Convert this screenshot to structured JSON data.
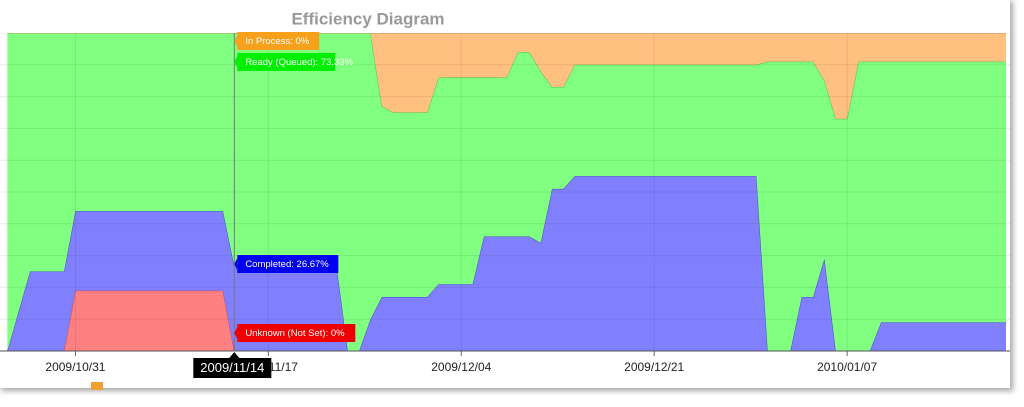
{
  "chart_data": {
    "type": "area",
    "title": "Efficiency Diagram",
    "x": [
      "2009/10/25",
      "2009/10/27",
      "2009/10/30",
      "2009/10/31",
      "2009/11/13",
      "2009/11/14",
      "2009/11/23",
      "2009/11/24",
      "2009/11/25",
      "2009/11/26",
      "2009/11/27",
      "2009/11/28",
      "2009/12/01",
      "2009/12/02",
      "2009/12/05",
      "2009/12/06",
      "2009/12/08",
      "2009/12/09",
      "2009/12/10",
      "2009/12/11",
      "2009/12/12",
      "2009/12/13",
      "2009/12/14",
      "2009/12/30",
      "2009/12/31",
      "2010/01/02",
      "2010/01/03",
      "2010/01/04",
      "2010/01/05",
      "2010/01/06",
      "2010/01/07",
      "2010/01/08",
      "2010/01/09",
      "2010/01/10",
      "2010/01/21"
    ],
    "series": [
      {
        "name": "Unknown (Not Set)",
        "color": "#ff8080",
        "edge": "#d04848",
        "values": [
          0,
          0,
          0,
          19,
          19,
          0,
          0,
          0,
          0,
          0,
          0,
          0,
          0,
          0,
          0,
          0,
          0,
          0,
          0,
          0,
          0,
          0,
          0,
          0,
          0,
          0,
          0,
          0,
          0,
          0,
          0,
          0,
          0,
          0,
          0
        ]
      },
      {
        "name": "Completed",
        "color": "#8080ff",
        "edge": "#4848c8",
        "values": [
          0,
          25,
          25,
          25,
          25,
          26.67,
          27,
          0,
          0,
          10,
          17,
          17,
          17,
          21,
          21,
          36,
          36,
          36,
          36,
          34,
          51,
          51,
          55,
          55,
          0,
          0,
          17,
          17,
          29,
          0,
          0,
          0,
          0,
          9,
          9
        ]
      },
      {
        "name": "Ready (Queued)",
        "color": "#80ff80",
        "edge": "#48c848",
        "values": [
          100,
          75,
          75,
          56,
          56,
          73.33,
          73,
          100,
          100,
          90,
          60,
          58,
          58,
          65,
          65,
          50,
          50,
          58,
          58,
          54,
          32,
          32,
          35,
          35,
          91,
          91,
          74,
          74,
          56,
          73,
          73,
          91,
          91,
          82,
          82
        ]
      },
      {
        "name": "In Process",
        "color": "#ffc080",
        "edge": "#e0a060",
        "values": [
          0,
          0,
          0,
          0,
          0,
          0,
          0,
          0,
          0,
          0,
          23,
          25,
          25,
          14,
          14,
          14,
          14,
          6,
          6,
          12,
          17,
          17,
          10,
          10,
          9,
          9,
          9,
          9,
          15,
          27,
          27,
          9,
          9,
          9,
          9
        ]
      }
    ],
    "xlim": [
      "2009/10/24",
      "2010/01/21"
    ],
    "xticks": [
      "2009/10/31",
      "2009/11/17",
      "2009/12/04",
      "2009/12/21",
      "2010/01/07"
    ],
    "ylim": [
      0,
      100
    ],
    "yticks": [
      0,
      10,
      20,
      30,
      40,
      50,
      60,
      70,
      80,
      90,
      100
    ],
    "grid": true,
    "tooltip": {
      "date": "2009/11/14",
      "items": [
        "In Process: 0%",
        "Ready (Queued): 73.33%",
        "Completed: 26.67%",
        "Unknown (Not Set): 0%"
      ]
    }
  }
}
